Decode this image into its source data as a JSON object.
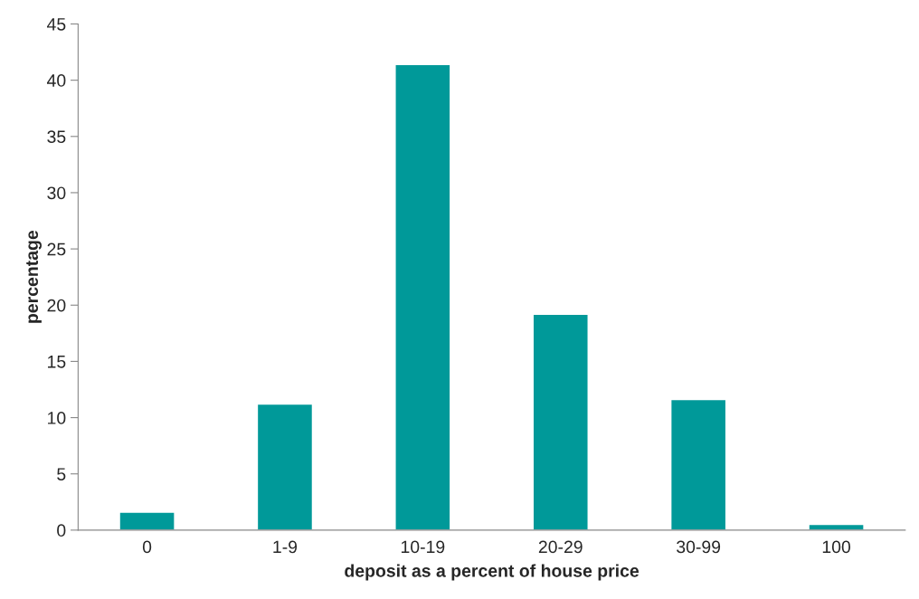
{
  "chart_data": {
    "type": "bar",
    "xlabel": "deposit as a percent of house price",
    "ylabel": "percentage",
    "categories": [
      "0",
      "1-9",
      "10-19",
      "20-29",
      "30-99",
      "100"
    ],
    "values": [
      1.6,
      11.2,
      41.4,
      19.2,
      11.6,
      0.5
    ],
    "color": "#009999",
    "ylim": [
      0,
      45
    ],
    "yticks": [
      0,
      5,
      10,
      15,
      20,
      25,
      30,
      35,
      40,
      45
    ],
    "grid": false,
    "legend": false
  }
}
